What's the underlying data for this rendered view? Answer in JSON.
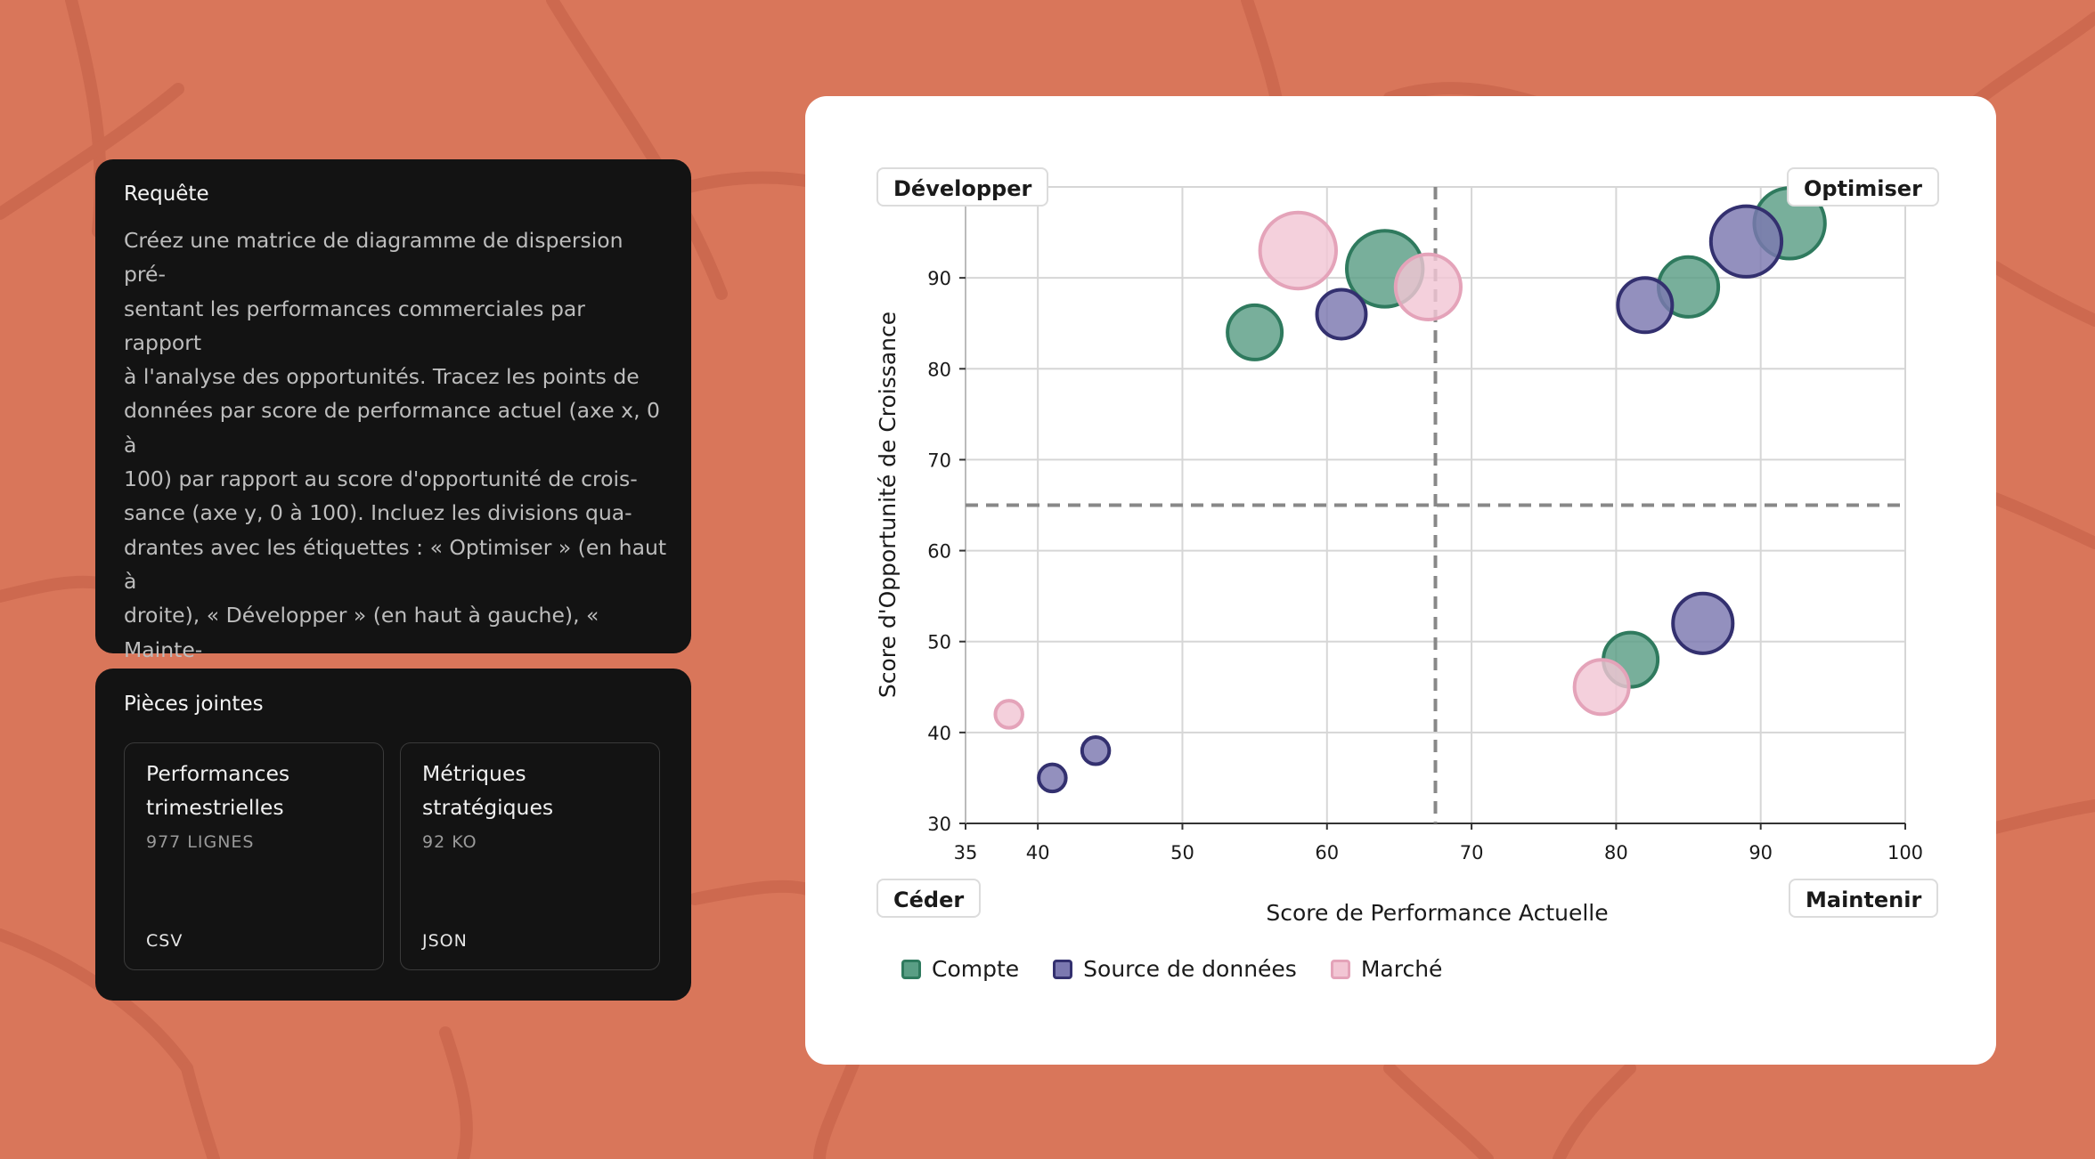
{
  "query": {
    "title": "Requête",
    "text": "Créez une matrice de diagramme de dispersion pré-\nsentant les performances commerciales par rapport\nà l'analyse des opportunités. Tracez les points de\ndonnées par score de performance actuel (axe x, 0 à\n100) par rapport au score d'opportunité de crois-\nsance (axe y, 0 à 100). Incluez les divisions qua-\ndrantes avec les étiquettes : « Optimiser » (en haut à\ndroite), « Développer » (en haut à gauche), « Mainte-\nnir » (en bas à droite), « Cesser » (en bas à gauche).\nUtilisez un code couleur par catégorie d'activité\net évaluez les points en fonction du potentiel\nde revenus/impact."
  },
  "attachments": {
    "title": "Pièces jointes",
    "files": [
      {
        "name": "Performances trimestrielles",
        "meta": "977 LIGNES",
        "type": "CSV"
      },
      {
        "name": "Métriques stratégiques",
        "meta": "92 KO",
        "type": "JSON"
      }
    ]
  },
  "chart_data": {
    "type": "scatter",
    "xlabel": "Score de Performance Actuelle",
    "ylabel": "Score d'Opportunité de Croissance",
    "xlim": [
      35,
      100
    ],
    "ylim": [
      30,
      100
    ],
    "xticks": [
      35,
      40,
      50,
      60,
      70,
      80,
      90,
      100
    ],
    "yticks": [
      30,
      40,
      50,
      60,
      70,
      80,
      90
    ],
    "grid": true,
    "divider_x": 67.5,
    "divider_y": 65,
    "quadrant_labels": {
      "top_left": "Développer",
      "top_right": "Optimiser",
      "bottom_left": "Céder",
      "bottom_right": "Maintenir"
    },
    "legend_position": "bottom",
    "series": [
      {
        "name": "Compte",
        "color": "#5a9e85",
        "stroke": "#2f7a5e",
        "points": [
          {
            "x": 55,
            "y": 84,
            "size": 5
          },
          {
            "x": 64,
            "y": 91,
            "size": 7
          },
          {
            "x": 85,
            "y": 89,
            "size": 5.5
          },
          {
            "x": 92,
            "y": 96,
            "size": 6.5
          },
          {
            "x": 81,
            "y": 48,
            "size": 5
          }
        ]
      },
      {
        "name": "Source de données",
        "color": "#7b78b0",
        "stroke": "#33306f",
        "points": [
          {
            "x": 61,
            "y": 86,
            "size": 4.5
          },
          {
            "x": 82,
            "y": 87,
            "size": 5
          },
          {
            "x": 89,
            "y": 94,
            "size": 6.5
          },
          {
            "x": 86,
            "y": 52,
            "size": 5.5
          },
          {
            "x": 44,
            "y": 38,
            "size": 2.5
          },
          {
            "x": 41,
            "y": 35,
            "size": 2.5
          }
        ]
      },
      {
        "name": "Marché",
        "color": "#f2c6d4",
        "stroke": "#e4a3b9",
        "points": [
          {
            "x": 58,
            "y": 93,
            "size": 7
          },
          {
            "x": 67,
            "y": 89,
            "size": 6
          },
          {
            "x": 79,
            "y": 45,
            "size": 5
          },
          {
            "x": 38,
            "y": 42,
            "size": 2.5
          }
        ]
      }
    ]
  }
}
